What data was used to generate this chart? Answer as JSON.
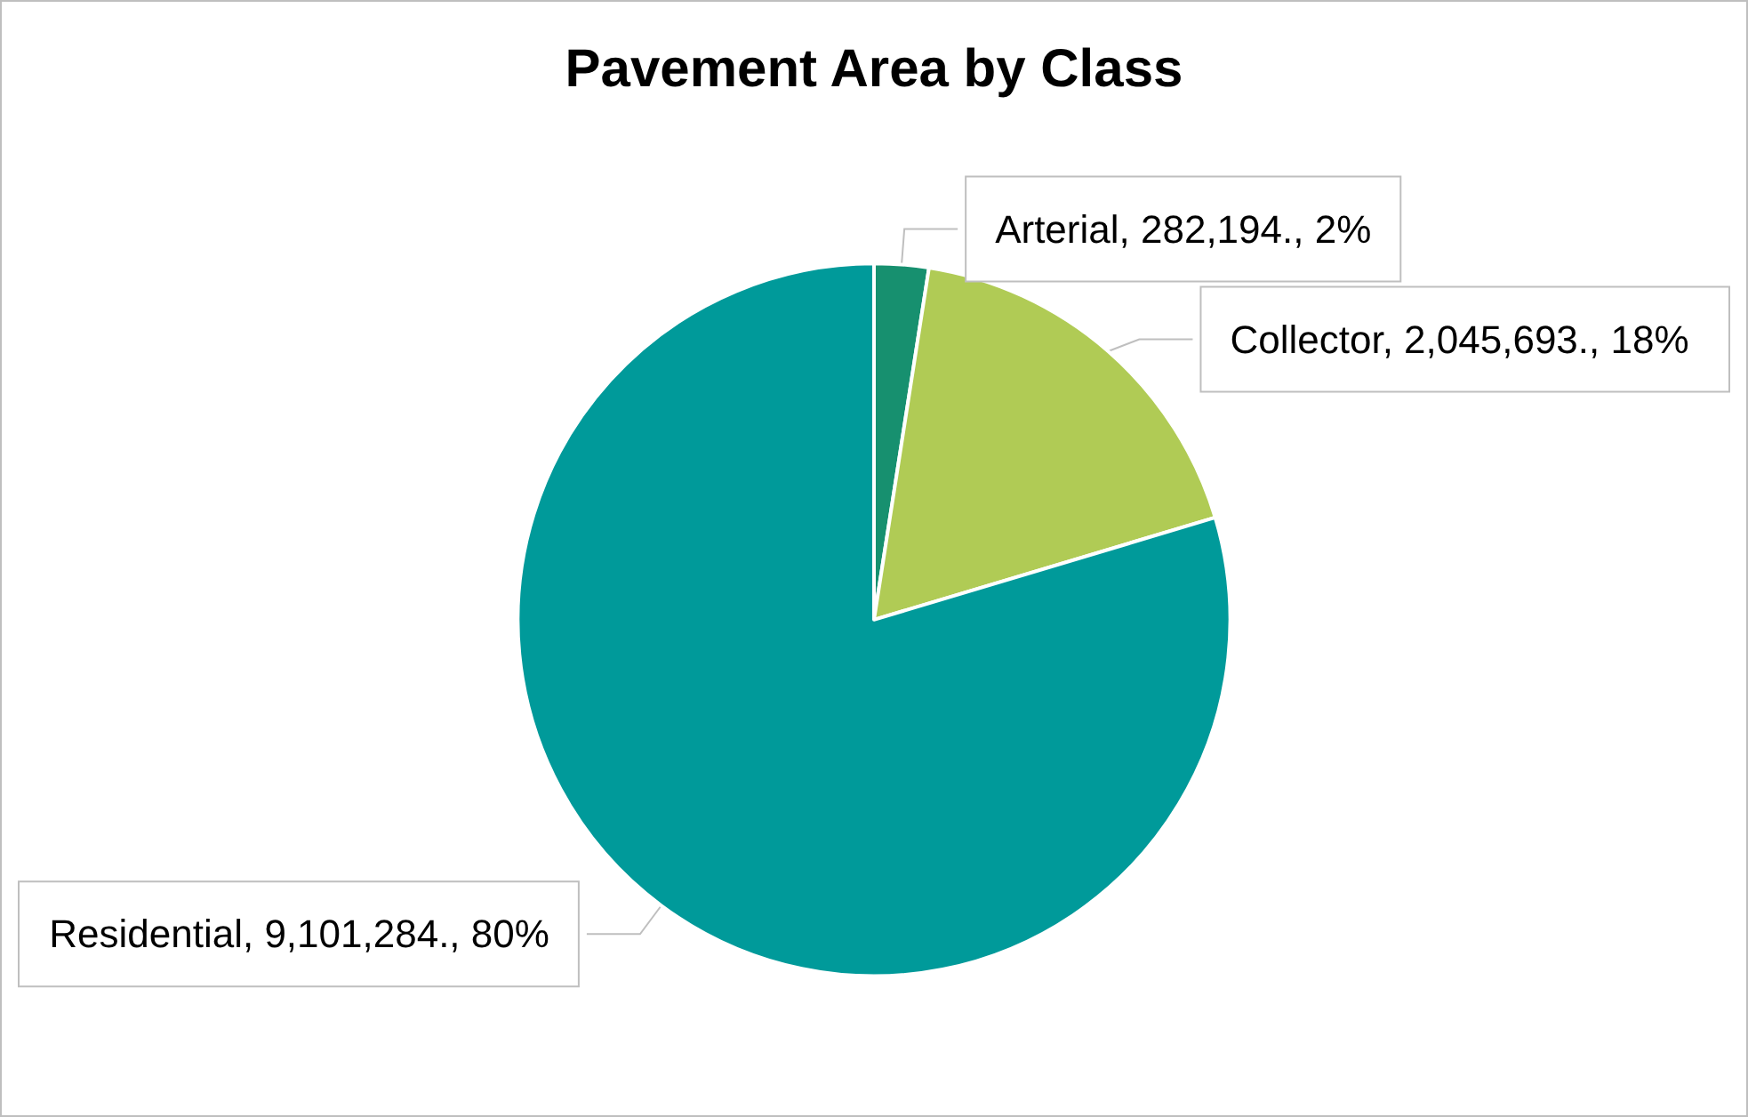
{
  "chart_data": {
    "type": "pie",
    "title": "Pavement Area by Class",
    "categories": [
      "Arterial",
      "Collector",
      "Residential"
    ],
    "values": [
      282194,
      2045693,
      9101284
    ],
    "colors": [
      "#17906f",
      "#b0cb55",
      "#009a9a"
    ],
    "value_labels": [
      "282,194., 2%",
      "2,045,693., 18%",
      "9,101,284., 80%"
    ],
    "legend": false
  }
}
